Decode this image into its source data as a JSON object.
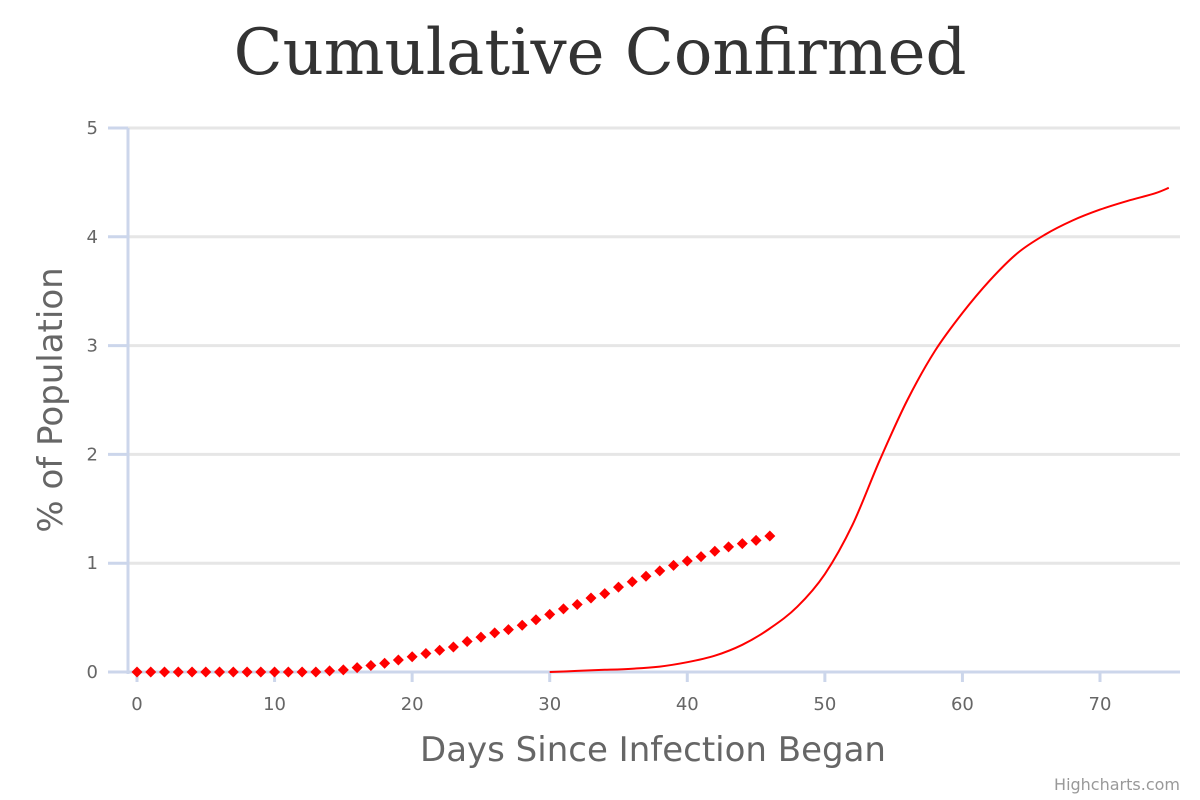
{
  "chart_data": {
    "type": "line",
    "title": "Cumulative Confirmed",
    "xlabel": "Days Since Infection Began",
    "ylabel": "% of Population",
    "xlim": [
      0,
      75
    ],
    "ylim": [
      0,
      5
    ],
    "x_ticks": [
      "0",
      "10",
      "20",
      "30",
      "40",
      "50",
      "60",
      "70"
    ],
    "y_ticks": [
      "0",
      "1",
      "2",
      "3",
      "4",
      "5"
    ],
    "grid": true,
    "legend": "none",
    "credits": "Highcharts.com",
    "colors": {
      "series": "#ff0000",
      "axis": "#ccd6eb",
      "grid": "#e6e6e6"
    },
    "series": [
      {
        "type": "scatter",
        "marker": "diamond",
        "x": [
          0,
          1,
          2,
          3,
          4,
          5,
          6,
          7,
          8,
          9,
          10,
          11,
          12,
          13,
          14,
          15,
          16,
          17,
          18,
          19,
          20,
          21,
          22,
          23,
          24,
          25,
          26,
          27,
          28,
          29,
          30,
          31,
          32,
          33,
          34,
          35,
          36,
          37,
          38,
          39,
          40,
          41,
          42,
          43,
          44,
          45,
          46
        ],
        "values": [
          0,
          0,
          0,
          0,
          0,
          0,
          0,
          0,
          0,
          0,
          0,
          0,
          0,
          0,
          0.01,
          0.02,
          0.04,
          0.06,
          0.08,
          0.11,
          0.14,
          0.17,
          0.2,
          0.23,
          0.28,
          0.32,
          0.36,
          0.39,
          0.43,
          0.48,
          0.53,
          0.58,
          0.62,
          0.68,
          0.72,
          0.78,
          0.83,
          0.88,
          0.93,
          0.98,
          1.02,
          1.06,
          1.11,
          1.15,
          1.18,
          1.21,
          1.25
        ]
      },
      {
        "type": "line",
        "x": [
          30,
          32,
          34,
          36,
          38,
          40,
          42,
          44,
          46,
          48,
          50,
          52,
          54,
          56,
          58,
          60,
          62,
          64,
          66,
          68,
          70,
          72,
          74,
          75
        ],
        "values": [
          0,
          0.01,
          0.02,
          0.03,
          0.05,
          0.09,
          0.15,
          0.25,
          0.4,
          0.6,
          0.9,
          1.35,
          1.95,
          2.5,
          2.95,
          3.3,
          3.6,
          3.85,
          4.02,
          4.15,
          4.25,
          4.33,
          4.4,
          4.45
        ]
      }
    ]
  }
}
